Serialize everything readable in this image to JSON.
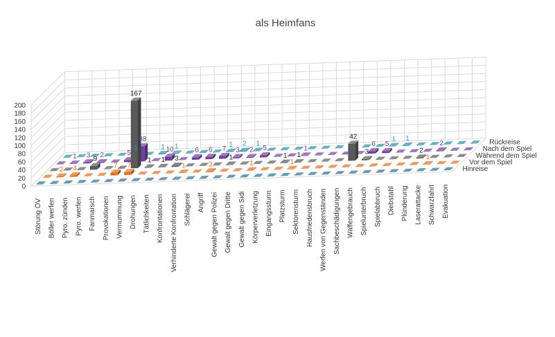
{
  "chart_data": {
    "type": "bar",
    "subtype": "3d-column",
    "title": "als Heimfans",
    "ylim": [
      0,
      200
    ],
    "yticks": [
      0,
      20,
      40,
      60,
      80,
      100,
      120,
      140,
      160,
      180,
      200
    ],
    "grid": true,
    "legend_placement": "right (series axis labels)",
    "categories": [
      "Störung ÖV",
      "Böller werfen",
      "Pyro. zünden",
      "Pyro. werfen",
      "Fanmarsch",
      "Provokationen",
      "Vermummung",
      "Drohungen",
      "Tätlichkeiten",
      "Konfrontationen",
      "Verhinderte Konfrontation",
      "Schlägerei",
      "Angriff",
      "Gewalt gegen Polizei",
      "Gewalt gegen Dritte",
      "Gewalt gegen Sidi",
      "Körperverletzung",
      "Eingangssturm",
      "Platzsturm",
      "Sektorensturm",
      "Hausfriedensbruch",
      "Werfen von Gegenständen",
      "Sachbeschädigungen",
      "Waffengebrauch",
      "Spielunterbruch",
      "Spielabbruch",
      "Diebstahl",
      "Plünderung",
      "Laserattacke",
      "Schwarzfahrt",
      "Evakuation"
    ],
    "series": [
      {
        "name": "Hinreise",
        "color": "#2e6f8c",
        "labelColor": "#2e6f8c",
        "values": [
          0,
          0,
          0,
          0,
          0,
          0,
          0,
          0,
          0,
          0,
          0,
          0,
          0,
          0,
          0,
          0,
          0,
          0,
          0,
          0,
          0,
          0,
          0,
          0,
          0,
          0,
          0,
          0,
          0,
          0,
          0
        ]
      },
      {
        "name": "Vor dem Spiel",
        "color": "#e07020",
        "labelColor": "#e07020",
        "values": [
          0,
          2,
          4,
          0,
          0,
          7,
          7,
          0,
          0,
          0,
          1,
          0,
          2,
          0,
          0,
          1,
          0,
          0,
          1,
          0,
          0,
          0,
          0,
          0,
          0,
          0,
          0,
          0,
          1,
          0,
          0
        ]
      },
      {
        "name": "Während dem Spiel",
        "color": "#595959",
        "labelColor": "#222222",
        "values": [
          0,
          0,
          0,
          9,
          0,
          0,
          167,
          1,
          1,
          3,
          0,
          0,
          0,
          1,
          0,
          0,
          0,
          1,
          1,
          0,
          0,
          0,
          42,
          3,
          0,
          0,
          0,
          2,
          0,
          0,
          0
        ]
      },
      {
        "name": "Nach dem Spiel",
        "color": "#7040a0",
        "labelColor": "#7040a0",
        "values": [
          0,
          1,
          3,
          2,
          0,
          5,
          38,
          0,
          10,
          0,
          6,
          6,
          7,
          3,
          2,
          5,
          0,
          0,
          1,
          0,
          0,
          0,
          0,
          6,
          5,
          0,
          0,
          0,
          2,
          0,
          0
        ]
      },
      {
        "name": "Rückreise",
        "color": "#2a8fa8",
        "labelColor": "#2aa0c0",
        "values": [
          0,
          0,
          0,
          0,
          0,
          1,
          0,
          1,
          1,
          0,
          0,
          0,
          1,
          2,
          1,
          0,
          0,
          0,
          0,
          0,
          0,
          0,
          0,
          0,
          1,
          1,
          0,
          0,
          0,
          0,
          0
        ]
      }
    ]
  }
}
